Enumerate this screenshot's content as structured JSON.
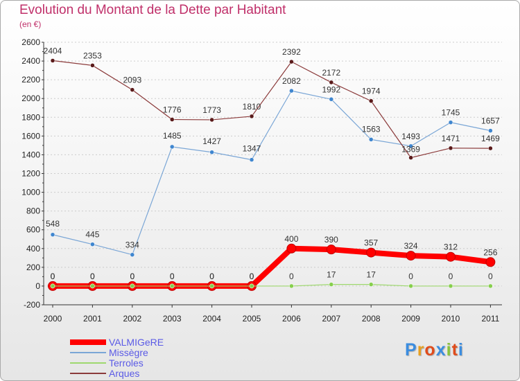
{
  "header": {
    "title": "Evolution du Montant de la Dette par Habitant",
    "subtitle": "(en €)"
  },
  "logo": {
    "text": "Proxiti",
    "colors": [
      "#3b8de0",
      "#e8a020",
      "#e04c1c",
      "#3b8de0",
      "#8ac43c",
      "#e04c1c",
      "#3b8de0"
    ]
  },
  "chart_data": {
    "type": "line",
    "title": "Evolution du Montant de la Dette par Habitant",
    "subtitle": "(en €)",
    "x": [
      "2000",
      "2001",
      "2002",
      "2003",
      "2004",
      "2005",
      "2006",
      "2007",
      "2008",
      "2009",
      "2010",
      "2011"
    ],
    "ylim": [
      -200,
      2600
    ],
    "yticks": [
      -200,
      0,
      200,
      400,
      600,
      800,
      1000,
      1200,
      1400,
      1600,
      1800,
      2000,
      2200,
      2400,
      2600
    ],
    "grid": true,
    "legend_position": "bottom-left",
    "series": [
      {
        "name": "VALMIGeRE",
        "color": "#ff0000",
        "values": [
          0,
          0,
          0,
          0,
          0,
          0,
          400,
          390,
          357,
          324,
          312,
          256
        ]
      },
      {
        "name": "Missègre",
        "color": "#7aa6d6",
        "values": [
          548,
          445,
          334,
          1485,
          1427,
          1347,
          2082,
          1992,
          1563,
          1493,
          1745,
          1657
        ]
      },
      {
        "name": "Terroles",
        "color": "#9ed86e",
        "values": [
          0,
          0,
          0,
          0,
          0,
          0,
          0,
          17,
          17,
          0,
          0,
          0
        ]
      },
      {
        "name": "Arques",
        "color": "#8b3a3a",
        "values": [
          2404,
          2353,
          2093,
          1776,
          1773,
          1810,
          2392,
          2172,
          1974,
          1369,
          1471,
          1469
        ]
      }
    ]
  }
}
